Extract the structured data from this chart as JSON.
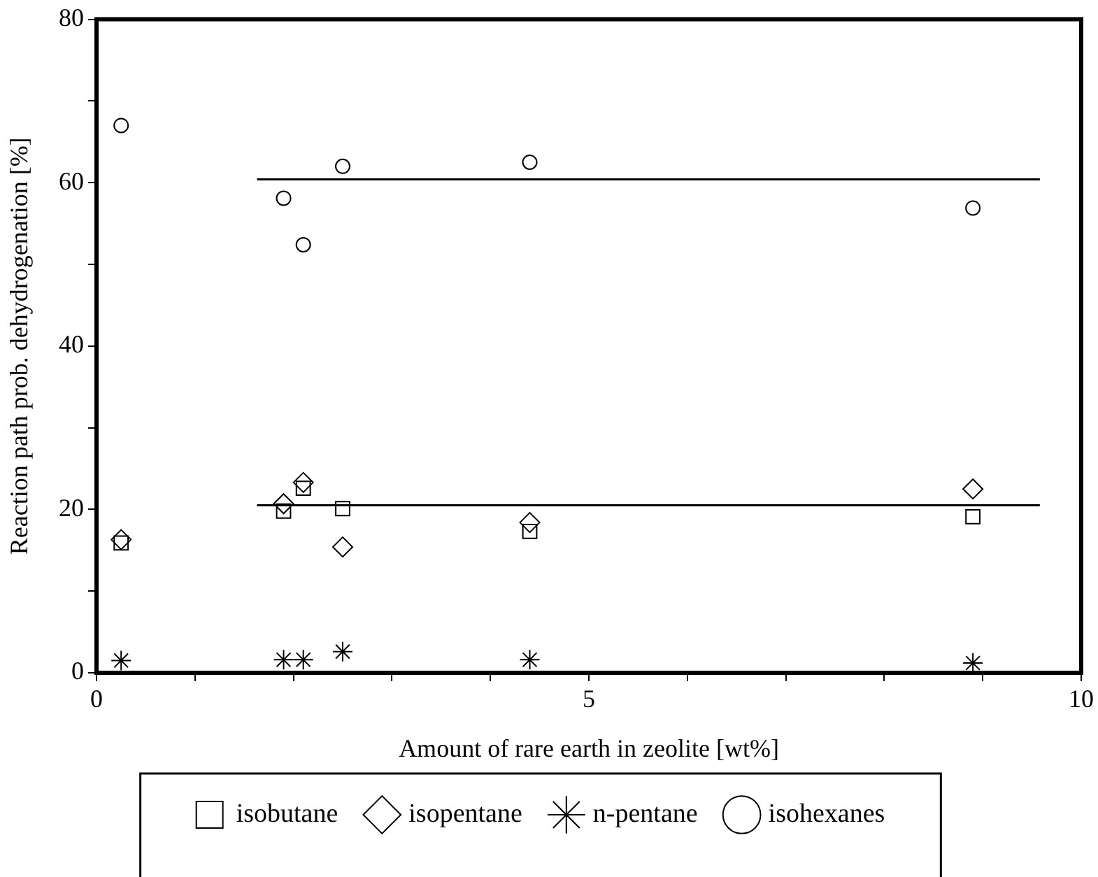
{
  "chart_data": {
    "type": "scatter",
    "xlabel": "Amount of rare earth in zeolite [wt%]",
    "ylabel": "Reaction path prob. dehydrogenation [%]",
    "xlim": [
      0,
      10
    ],
    "ylim": [
      0,
      80
    ],
    "xticks": [
      0,
      {
        "value": 1,
        "label": null
      },
      {
        "value": 2,
        "label": null
      },
      {
        "value": 3,
        "label": null
      },
      {
        "value": 4,
        "label": null
      },
      5,
      {
        "value": 6,
        "label": null
      },
      {
        "value": 7,
        "label": null
      },
      {
        "value": 8,
        "label": null
      },
      {
        "value": 9,
        "label": null
      },
      10
    ],
    "yticks": [
      0,
      {
        "value": 10,
        "label": null
      },
      20,
      {
        "value": 30,
        "label": null
      },
      40,
      {
        "value": 50,
        "label": null
      },
      60,
      {
        "value": 70,
        "label": null
      },
      80
    ],
    "legend": "bottom",
    "series": [
      {
        "name": "isobutane",
        "color": "#000000",
        "marker": "square",
        "x": [
          0.25,
          1.9,
          2.1,
          2.5,
          4.4,
          8.9
        ],
        "values": [
          15.9,
          19.8,
          22.6,
          20.1,
          17.3,
          19.1
        ]
      },
      {
        "name": "isopentane",
        "color": "#000000",
        "marker": "diamond",
        "x": [
          0.25,
          1.9,
          2.1,
          2.5,
          4.4,
          8.9
        ],
        "values": [
          16.3,
          20.7,
          23.3,
          15.4,
          18.4,
          22.5
        ]
      },
      {
        "name": "n-pentane",
        "color": "#000000",
        "marker": "cross",
        "x": [
          0.25,
          1.9,
          2.1,
          2.5,
          4.4,
          8.9
        ],
        "values": [
          1.5,
          1.6,
          1.6,
          2.6,
          1.6,
          1.2
        ]
      },
      {
        "name": "isohexanes",
        "color": "#000000",
        "marker": "circle",
        "x": [
          0.25,
          1.9,
          2.1,
          2.5,
          4.4,
          8.9
        ],
        "values": [
          67,
          58.1,
          52.4,
          62,
          62.5,
          56.9
        ]
      },
      {
        "type": "line",
        "color": "#000000",
        "marker": "none",
        "x": [
          1.63,
          9.58
        ],
        "values": [
          60.4,
          60.4
        ]
      },
      {
        "type": "line",
        "color": "#000000",
        "marker": "none",
        "x": [
          1.63,
          9.58
        ],
        "values": [
          20.5,
          20.5
        ]
      }
    ]
  }
}
